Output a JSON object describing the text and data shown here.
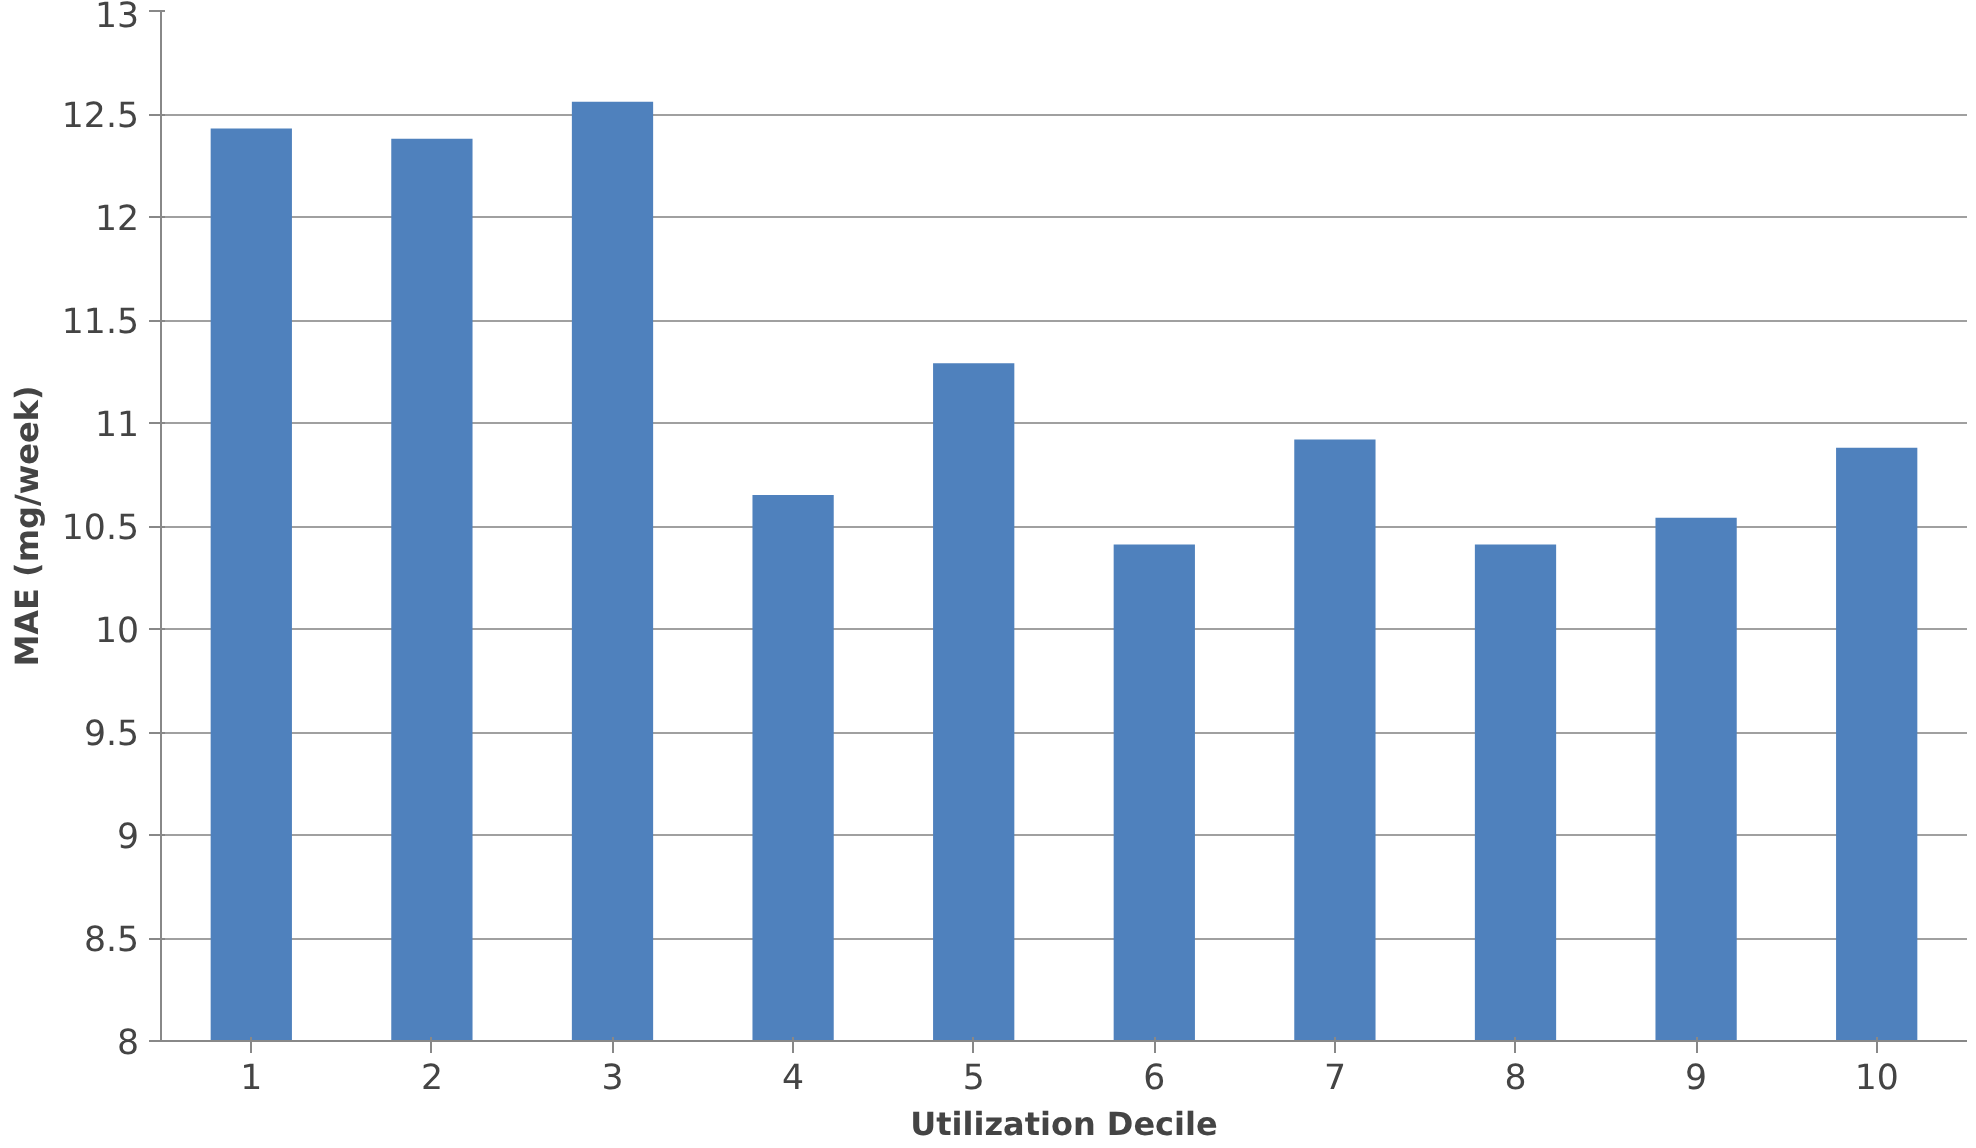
{
  "chart_data": {
    "type": "bar",
    "xlabel": "Utilization Decile",
    "ylabel": "MAE (mg/week)",
    "categories": [
      "1",
      "2",
      "3",
      "4",
      "5",
      "6",
      "7",
      "8",
      "9",
      "10"
    ],
    "values": [
      12.43,
      12.38,
      12.56,
      10.65,
      11.29,
      10.41,
      10.92,
      10.41,
      10.54,
      10.88
    ],
    "color": "#4f81bd",
    "ylim": [
      8,
      13
    ],
    "yticks": [
      8,
      8.5,
      9,
      9.5,
      10,
      10.5,
      11,
      11.5,
      12,
      12.5,
      13
    ],
    "grid": "y"
  }
}
